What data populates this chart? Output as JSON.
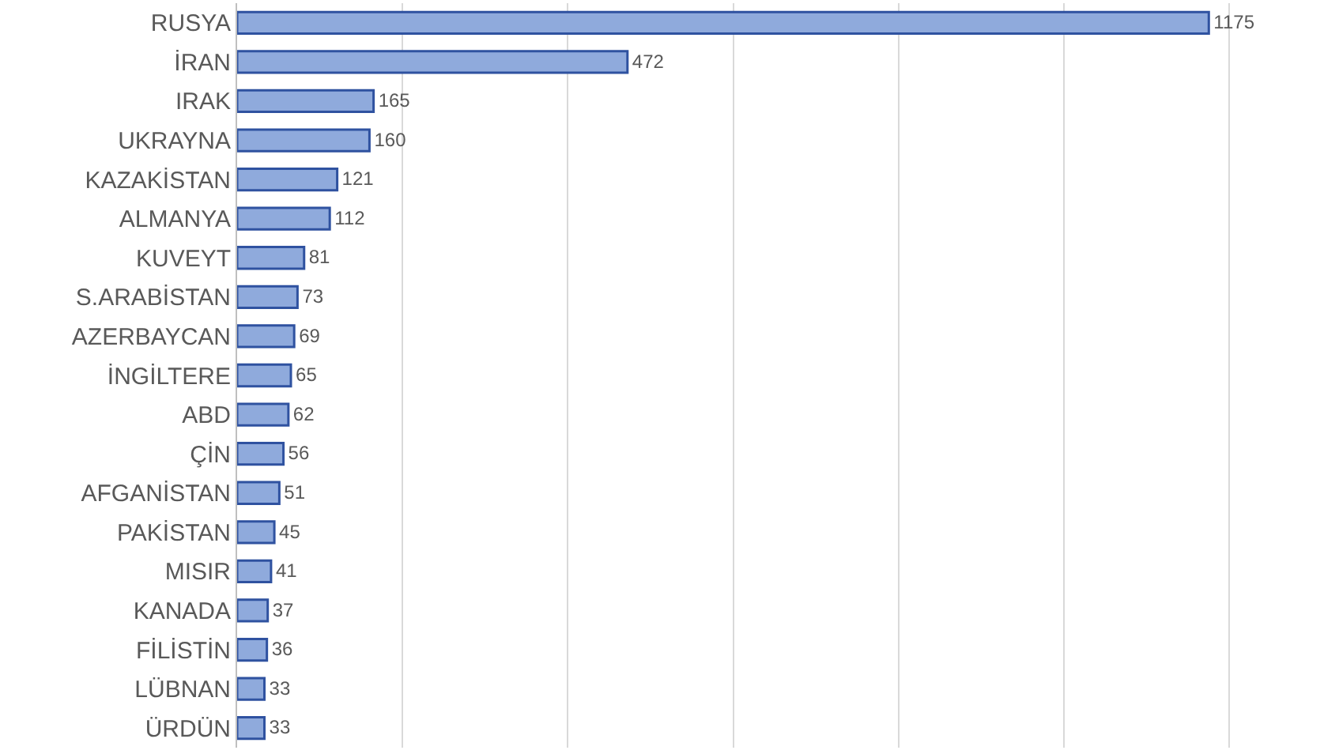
{
  "chart_data": {
    "type": "bar",
    "orientation": "horizontal",
    "categories": [
      "RUSYA",
      "İRAN",
      "IRAK",
      "UKRAYNA",
      "KAZAKİSTAN",
      "ALMANYA",
      "KUVEYT",
      "S.ARABİSTAN",
      "AZERBAYCAN",
      "İNGİLTERE",
      "ABD",
      "ÇİN",
      "AFGANİSTAN",
      "PAKİSTAN",
      "MISIR",
      "KANADA",
      "FİLİSTİN",
      "LÜBNAN",
      "ÜRDÜN"
    ],
    "values": [
      1175,
      472,
      165,
      160,
      121,
      112,
      81,
      73,
      69,
      65,
      62,
      56,
      51,
      45,
      41,
      37,
      36,
      33,
      33
    ],
    "color": "#8faadc",
    "data_labels": true,
    "tick_labels": "y",
    "grid": "x",
    "legend": false
  }
}
